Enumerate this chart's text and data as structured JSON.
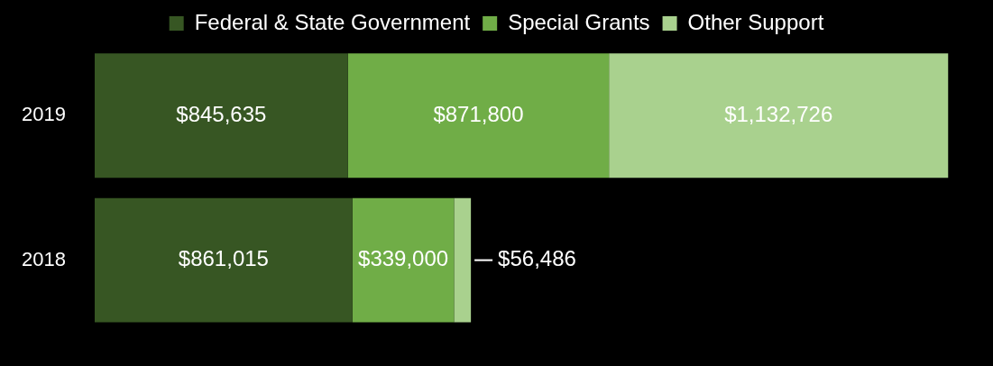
{
  "chart_data": {
    "type": "bar",
    "orientation": "horizontal",
    "stacked": true,
    "categories": [
      "2019",
      "2018"
    ],
    "series": [
      {
        "name": "Federal & State Government",
        "color": "#375623",
        "values": [
          845635,
          861015
        ],
        "value_labels": [
          "$845,635",
          "$861,015"
        ]
      },
      {
        "name": "Special Grants",
        "color": "#70ad47",
        "values": [
          871800,
          339000
        ],
        "value_labels": [
          "$871,800",
          "$339,000"
        ]
      },
      {
        "name": "Other Support",
        "color": "#a9d18e",
        "values": [
          1132726,
          56486
        ],
        "value_labels": [
          "$1,132,726",
          "$56,486"
        ]
      }
    ],
    "legend": "top",
    "grid": false,
    "tick_labels": "y"
  }
}
